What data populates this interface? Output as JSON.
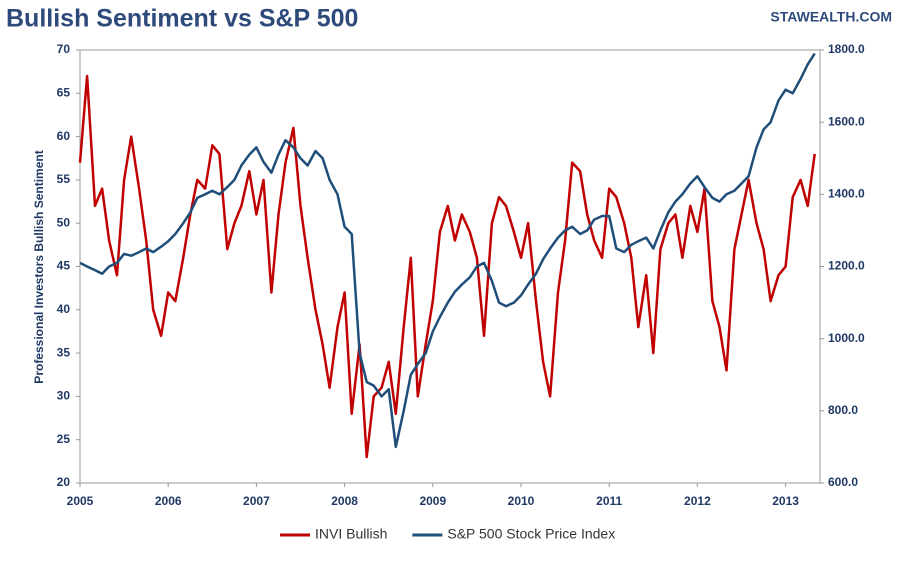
{
  "chart_data": {
    "type": "line",
    "title": "Bullish Sentiment vs S&P 500",
    "source": "STAWEALTH.COM",
    "ylabel": "Professional Investors Bullish Sentiment",
    "x": [
      2005.0,
      2005.08,
      2005.17,
      2005.25,
      2005.33,
      2005.42,
      2005.5,
      2005.58,
      2005.67,
      2005.75,
      2005.83,
      2005.92,
      2006.0,
      2006.08,
      2006.17,
      2006.25,
      2006.33,
      2006.42,
      2006.5,
      2006.58,
      2006.67,
      2006.75,
      2006.83,
      2006.92,
      2007.0,
      2007.08,
      2007.17,
      2007.25,
      2007.33,
      2007.42,
      2007.5,
      2007.58,
      2007.67,
      2007.75,
      2007.83,
      2007.92,
      2008.0,
      2008.08,
      2008.17,
      2008.25,
      2008.33,
      2008.42,
      2008.5,
      2008.58,
      2008.67,
      2008.75,
      2008.83,
      2008.92,
      2009.0,
      2009.08,
      2009.17,
      2009.25,
      2009.33,
      2009.42,
      2009.5,
      2009.58,
      2009.67,
      2009.75,
      2009.83,
      2009.92,
      2010.0,
      2010.08,
      2010.17,
      2010.25,
      2010.33,
      2010.42,
      2010.5,
      2010.58,
      2010.67,
      2010.75,
      2010.83,
      2010.92,
      2011.0,
      2011.08,
      2011.17,
      2011.25,
      2011.33,
      2011.42,
      2011.5,
      2011.58,
      2011.67,
      2011.75,
      2011.83,
      2011.92,
      2012.0,
      2012.08,
      2012.17,
      2012.25,
      2012.33,
      2012.42,
      2012.5,
      2012.58,
      2012.67,
      2012.75,
      2012.83,
      2012.92,
      2013.0,
      2013.08,
      2013.17,
      2013.25,
      2013.33
    ],
    "series": [
      {
        "name": "INVI Bullish",
        "color": "#c00000",
        "values": [
          57,
          67,
          52,
          54,
          48,
          44,
          55,
          60,
          54,
          48,
          40,
          37,
          42,
          41,
          46,
          51,
          55,
          54,
          59,
          58,
          47,
          50,
          52,
          56,
          51,
          55,
          42,
          51,
          57,
          61,
          52,
          46,
          40,
          36,
          31,
          38,
          42,
          28,
          36,
          23,
          30,
          31,
          34,
          28,
          38,
          46,
          30,
          36,
          41,
          49,
          52,
          48,
          51,
          49,
          46,
          37,
          50,
          53,
          52,
          49,
          46,
          50,
          41,
          34,
          30,
          42,
          48,
          57,
          56,
          51,
          48,
          46,
          54,
          53,
          50,
          46,
          38,
          44,
          35,
          47,
          50,
          51,
          46,
          52,
          49,
          54,
          41,
          38,
          33,
          47,
          51,
          55,
          50,
          47,
          41,
          44,
          45,
          53,
          55,
          52,
          58
        ]
      },
      {
        "name": "S&P 500 Stock Price Index",
        "color": "#1f4e79",
        "axis": "y2",
        "values": [
          1210,
          1200,
          1190,
          1180,
          1200,
          1210,
          1235,
          1230,
          1240,
          1250,
          1240,
          1255,
          1270,
          1290,
          1320,
          1350,
          1390,
          1400,
          1410,
          1400,
          1420,
          1440,
          1480,
          1510,
          1530,
          1490,
          1460,
          1510,
          1550,
          1530,
          1500,
          1480,
          1520,
          1500,
          1440,
          1400,
          1310,
          1290,
          960,
          880,
          870,
          840,
          860,
          700,
          800,
          900,
          930,
          960,
          1020,
          1060,
          1100,
          1130,
          1150,
          1170,
          1200,
          1210,
          1160,
          1100,
          1090,
          1100,
          1120,
          1150,
          1180,
          1220,
          1250,
          1280,
          1300,
          1310,
          1290,
          1300,
          1330,
          1340,
          1340,
          1250,
          1240,
          1260,
          1270,
          1280,
          1250,
          1300,
          1350,
          1380,
          1400,
          1430,
          1450,
          1420,
          1390,
          1380,
          1400,
          1410,
          1430,
          1450,
          1530,
          1580,
          1600,
          1660,
          1690,
          1680,
          1720,
          1760,
          1790
        ]
      }
    ],
    "xlim": [
      2005,
      2013.39
    ],
    "xticks": [
      2005,
      2006,
      2007,
      2008,
      2009,
      2010,
      2011,
      2012,
      2013
    ],
    "ylim": [
      20,
      70
    ],
    "yticks": [
      20,
      25,
      30,
      35,
      40,
      45,
      50,
      55,
      60,
      65,
      70
    ],
    "y2lim": [
      600,
      1800
    ],
    "y2ticks": [
      {
        "value": 600,
        "label": "600.0"
      },
      {
        "value": 800,
        "label": "800.0"
      },
      {
        "value": 1000,
        "label": "1000.0"
      },
      {
        "value": 1200,
        "label": "1200.0"
      },
      {
        "value": 1400,
        "label": "1400.0"
      },
      {
        "value": 1600,
        "label": "1600.0"
      },
      {
        "value": 1800,
        "label": "1800.0"
      }
    ],
    "legend": "bottom"
  }
}
